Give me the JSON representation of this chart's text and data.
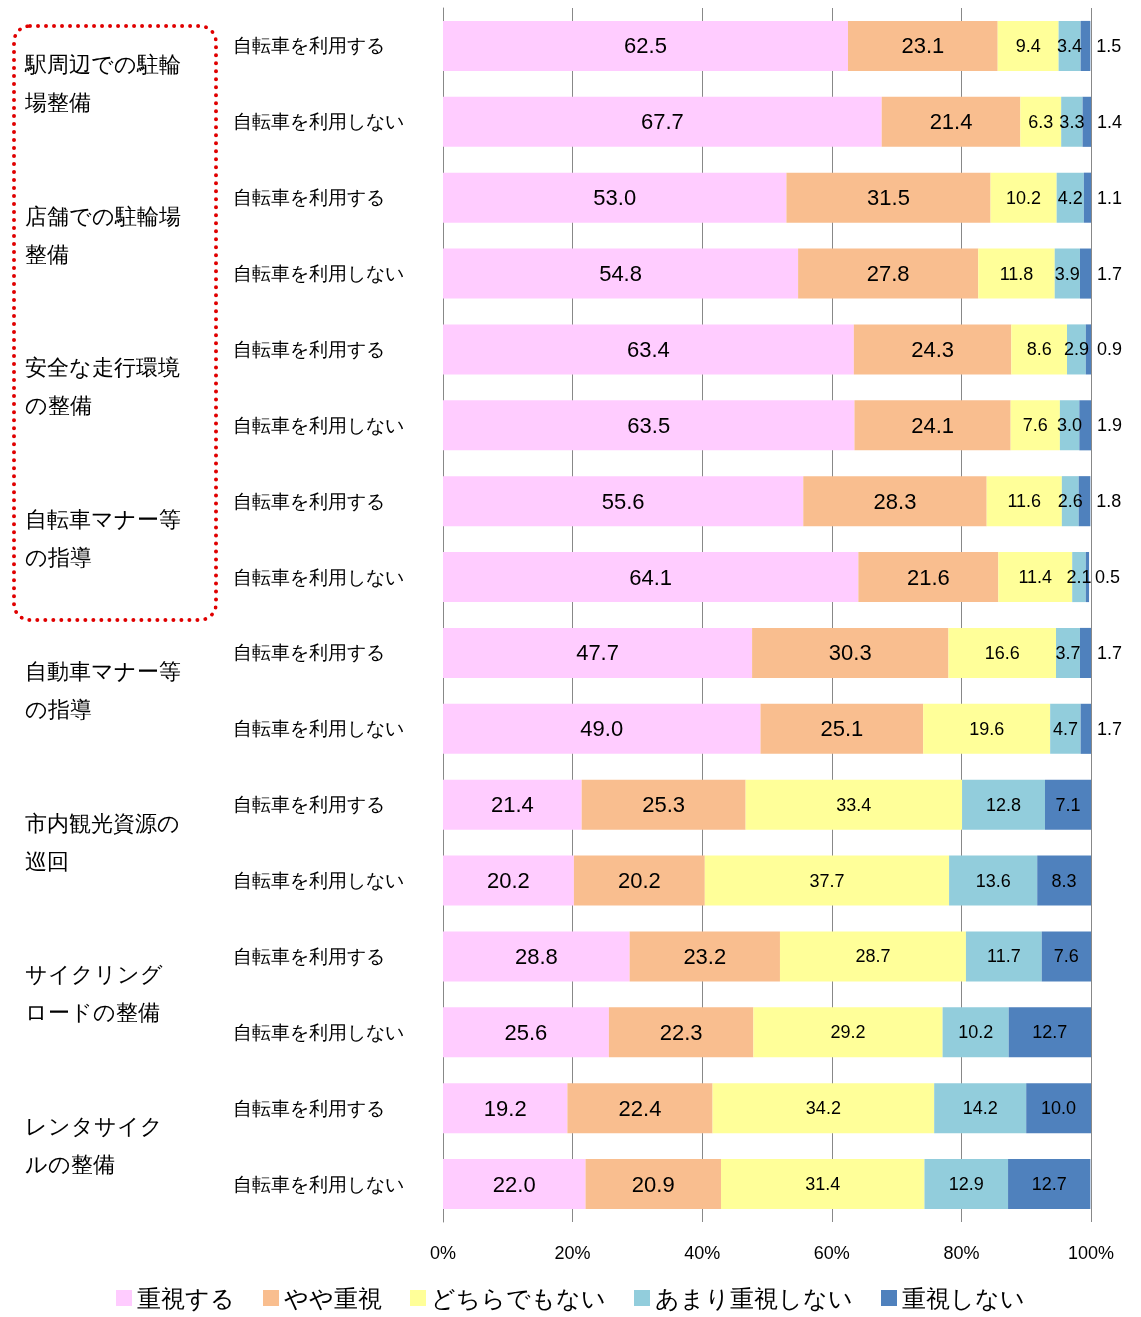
{
  "chart_data": {
    "type": "bar",
    "orientation": "horizontal",
    "stacked": true,
    "categories": [
      "自転車を利用する",
      "自転車を利用しない",
      "自転車を利用する",
      "自転車を利用しない",
      "自転車を利用する",
      "自転車を利用しない",
      "自転車を利用する",
      "自転車を利用しない",
      "自転車を利用する",
      "自転車を利用しない",
      "自転車を利用する",
      "自転車を利用しない",
      "自転車を利用する",
      "自転車を利用しない",
      "自転車を利用する",
      "自転車を利用しない"
    ],
    "annotations": [
      "駅周辺での駐輪場整備",
      "店舗での駐輪場整備",
      "安全な走行環境の整備",
      "自転車マナー等の指導",
      "自動車マナー等の指導",
      "市内観光資源の巡回",
      "サイクリングロードの整備",
      "レンタサイクルの整備"
    ],
    "series": [
      {
        "name": "重視する",
        "color": "#ffccff",
        "values": [
          62.5,
          67.7,
          53.0,
          54.8,
          63.4,
          63.5,
          55.6,
          64.1,
          47.7,
          49.0,
          21.4,
          20.2,
          28.8,
          25.6,
          19.2,
          22.0
        ],
        "value_labels": [
          "62.5",
          "67.7",
          "53.0",
          "54.8",
          "63.4",
          "63.5",
          "55.6",
          "64.1",
          "47.7",
          "49.0",
          "21.4",
          "20.2",
          "28.8",
          "25.6",
          "19.2",
          "22.0"
        ]
      },
      {
        "name": "やや重視",
        "color": "#f9be8f",
        "values": [
          23.1,
          21.4,
          31.5,
          27.8,
          24.3,
          24.1,
          28.3,
          21.6,
          30.3,
          25.1,
          25.3,
          20.2,
          23.2,
          22.3,
          22.4,
          20.9
        ],
        "value_labels": [
          "23.1",
          "21.4",
          "31.5",
          "27.8",
          "24.3",
          "24.1",
          "28.3",
          "21.6",
          "30.3",
          "25.1",
          "25.3",
          "20.2",
          "23.2",
          "22.3",
          "22.4",
          "20.9"
        ]
      },
      {
        "name": "どちらでもない",
        "color": "#ffff99",
        "values": [
          9.4,
          6.3,
          10.2,
          11.8,
          8.6,
          7.6,
          11.6,
          11.4,
          16.6,
          19.6,
          33.4,
          37.7,
          28.7,
          29.2,
          34.2,
          31.4
        ],
        "value_labels": [
          "9.4",
          "6.3",
          "10.2",
          "11.8",
          "8.6",
          "7.6",
          "11.6",
          "11.4",
          "16.6",
          "19.6",
          "33.4",
          "37.7",
          "28.7",
          "29.2",
          "34.2",
          "31.4"
        ]
      },
      {
        "name": "あまり重視しない",
        "color": "#92cddc",
        "values": [
          3.4,
          3.3,
          4.2,
          3.9,
          2.9,
          3.0,
          2.6,
          2.1,
          3.7,
          4.7,
          12.8,
          13.6,
          11.7,
          10.2,
          14.2,
          12.9
        ],
        "value_labels": [
          "3.4",
          "3.3",
          "4.2",
          "3.9",
          "2.9",
          "3.0",
          "2.6",
          "2.1",
          "3.7",
          "4.7",
          "12.8",
          "13.6",
          "11.7",
          "10.2",
          "14.2",
          "12.9"
        ]
      },
      {
        "name": "重視しない",
        "color": "#4f81bd",
        "values": [
          1.5,
          1.4,
          1.1,
          1.7,
          0.9,
          1.9,
          1.8,
          0.5,
          1.7,
          1.7,
          7.1,
          8.3,
          7.6,
          12.7,
          10.0,
          12.7
        ],
        "value_labels": [
          "1.5",
          "1.4",
          "1.1",
          "1.7",
          "0.9",
          "1.9",
          "1.8",
          "0.5",
          "1.7",
          "1.7",
          "7.1",
          "8.3",
          "7.6",
          "12.7",
          "10.0",
          "12.7"
        ]
      }
    ],
    "xlim": [
      0,
      100
    ],
    "xticks": [
      {
        "value": 0,
        "label": "0%"
      },
      {
        "value": 20,
        "label": "20%"
      },
      {
        "value": 40,
        "label": "40%"
      },
      {
        "value": 60,
        "label": "60%"
      },
      {
        "value": 80,
        "label": "80%"
      },
      {
        "value": 100,
        "label": "100%"
      }
    ],
    "grid": "x",
    "legend": "bottom"
  }
}
